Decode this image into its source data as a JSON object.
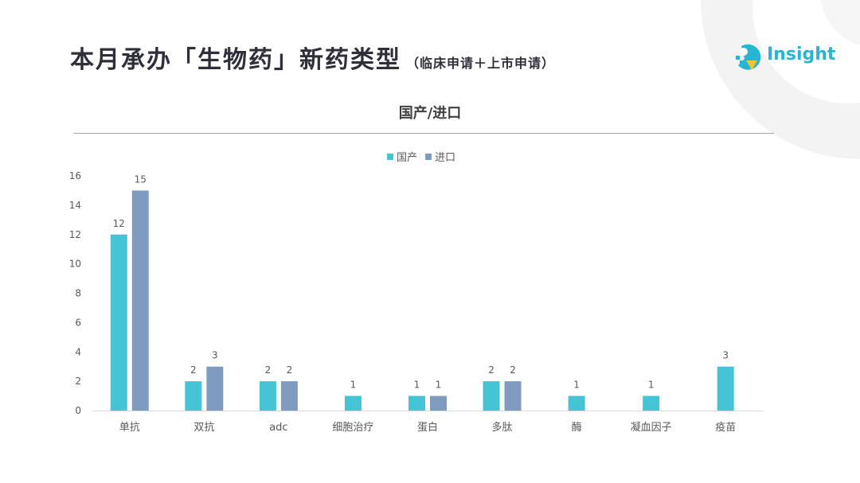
{
  "slide": {
    "title": "本月承办「生物药」新药类型",
    "subtitle": "（临床申请＋上市申请）"
  },
  "logo": {
    "text": "Insight"
  },
  "colors": {
    "domestic": "#45c4d6",
    "imported": "#7f9cc0",
    "title": "#2f2f3a",
    "axis_text": "#595959"
  },
  "chart_data": {
    "type": "bar",
    "title": "国产/进口",
    "xlabel": "",
    "ylabel": "",
    "legend_position": "top",
    "categories": [
      "单抗",
      "双抗",
      "adc",
      "细胞治疗",
      "蛋白",
      "多肽",
      "酶",
      "凝血因子",
      "疫苗"
    ],
    "series": [
      {
        "name": "国产",
        "values": [
          12,
          2,
          2,
          1,
          1,
          2,
          1,
          1,
          3
        ]
      },
      {
        "name": "进口",
        "values": [
          15,
          3,
          2,
          null,
          1,
          2,
          null,
          null,
          null
        ]
      }
    ],
    "ylim": [
      0,
      16
    ],
    "yticks": [
      0,
      2,
      4,
      6,
      8,
      10,
      12,
      14,
      16
    ],
    "grid": false
  }
}
